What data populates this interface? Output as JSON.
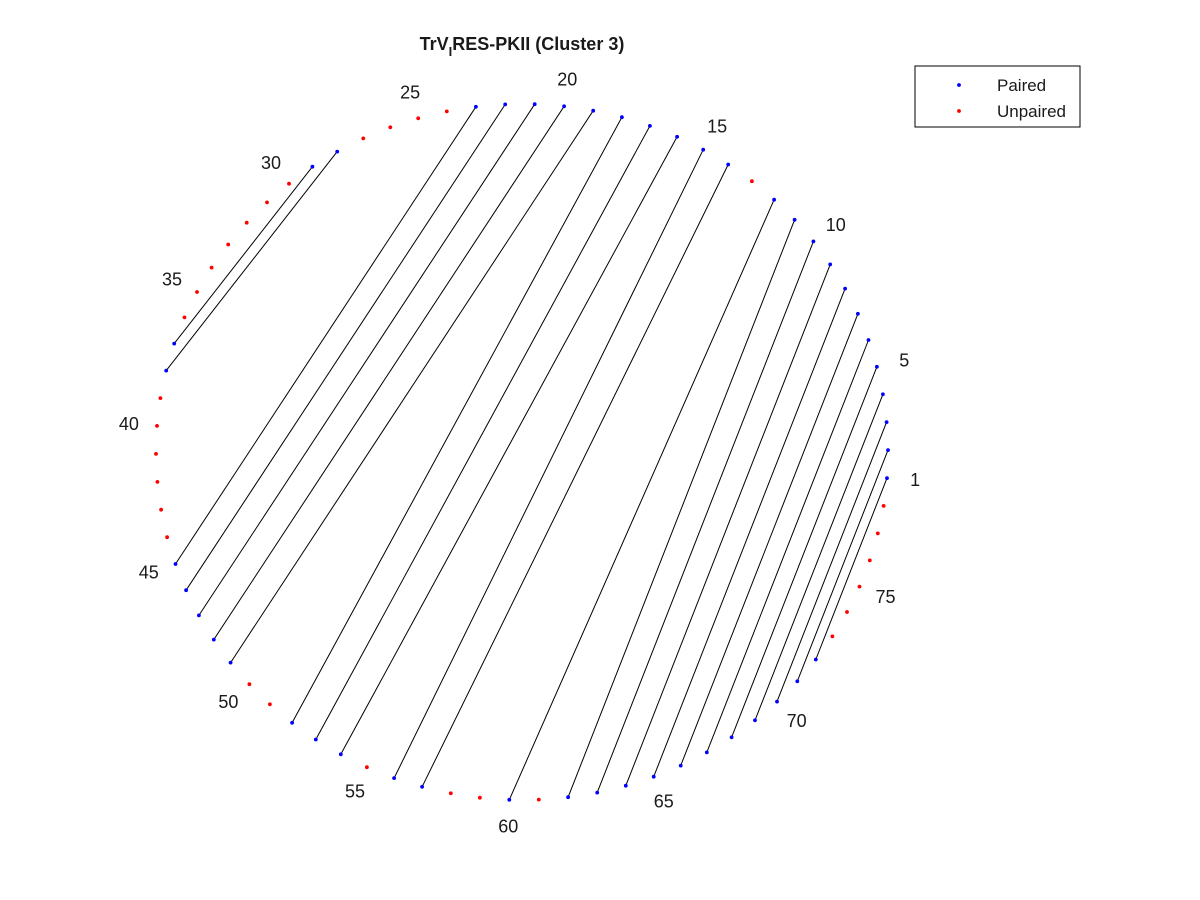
{
  "title": {
    "main": "TrV",
    "subscript": "I",
    "rest": "RES-PKII (Cluster 3)"
  },
  "legend": {
    "paired_label": "Paired",
    "unpaired_label": "Unpaired",
    "paired_color": "#0000ff",
    "unpaired_color": "#ff0000"
  },
  "chart_data": {
    "type": "arc-diagram",
    "layout": "circular",
    "positions": 78,
    "position_labels": [
      1,
      5,
      10,
      15,
      20,
      25,
      30,
      35,
      40,
      45,
      50,
      55,
      60,
      65,
      70,
      75
    ],
    "pairs": [
      [
        1,
        72
      ],
      [
        2,
        71
      ],
      [
        3,
        70
      ],
      [
        4,
        69
      ],
      [
        5,
        68
      ],
      [
        6,
        67
      ],
      [
        7,
        66
      ],
      [
        8,
        65
      ],
      [
        9,
        64
      ],
      [
        10,
        63
      ],
      [
        11,
        62
      ],
      [
        12,
        60
      ],
      [
        14,
        57
      ],
      [
        15,
        56
      ],
      [
        16,
        54
      ],
      [
        17,
        53
      ],
      [
        18,
        52
      ],
      [
        19,
        49
      ],
      [
        20,
        48
      ],
      [
        21,
        47
      ],
      [
        22,
        46
      ],
      [
        23,
        45
      ],
      [
        28,
        38
      ],
      [
        29,
        37
      ]
    ],
    "series": [
      {
        "name": "Paired",
        "color": "#0000ff"
      },
      {
        "name": "Unpaired",
        "color": "#ff0000"
      }
    ],
    "legend_position": "top-right"
  }
}
